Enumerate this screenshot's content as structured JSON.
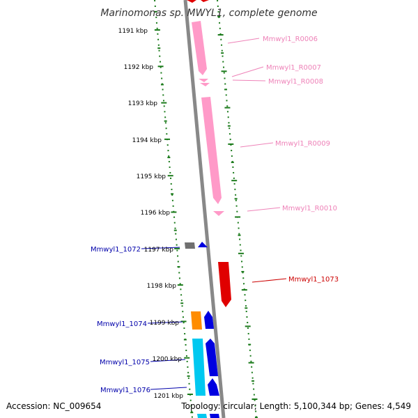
{
  "title": "Marinomonas sp. MWYL1, complete genome",
  "footer": {
    "accession": "Accession: NC_009654",
    "summary": "Topology: circular; Length: 5,100,344 bp; Genes: 4,549"
  },
  "colors": {
    "background": "#ffffff",
    "backbone": "#888888",
    "tick_dot": "#1a7a1a",
    "rrna_pink": "#ff9ac8",
    "gene_red": "#e00000",
    "gene_blue": "#0000e0",
    "gene_orange": "#ff8c00",
    "gene_cyan": "#00c8f0",
    "gene_gray": "#707070",
    "label_pink": "#ee82b8",
    "label_red": "#cc0000",
    "label_blue": "#0000aa"
  },
  "ticks": [
    {
      "label": "1191 kbp",
      "kbp": 1191
    },
    {
      "label": "1192 kbp",
      "kbp": 1192
    },
    {
      "label": "1193 kbp",
      "kbp": 1193
    },
    {
      "label": "1194 kbp",
      "kbp": 1194
    },
    {
      "label": "1195 kbp",
      "kbp": 1195
    },
    {
      "label": "1196 kbp",
      "kbp": 1196
    },
    {
      "label": "1197 kbp",
      "kbp": 1197
    },
    {
      "label": "1198 kbp",
      "kbp": 1198
    },
    {
      "label": "1199 kbp",
      "kbp": 1199
    },
    {
      "label": "1200 kbp",
      "kbp": 1200
    },
    {
      "label": "1201 kbp",
      "kbp": 1201
    }
  ],
  "right_labels": [
    {
      "text": "Mmwyl1_R0006",
      "color": "#ee82b8"
    },
    {
      "text": "Mmwyl1_R0007",
      "color": "#ee82b8"
    },
    {
      "text": "Mmwyl1_R0008",
      "color": "#ee82b8"
    },
    {
      "text": "Mmwyl1_R0009",
      "color": "#ee82b8"
    },
    {
      "text": "Mmwyl1_R0010",
      "color": "#ee82b8"
    },
    {
      "text": "Mmwyl1_1073",
      "color": "#cc0000"
    }
  ],
  "left_labels": [
    {
      "text": "Mmwyl1_1072",
      "color": "#0000aa"
    },
    {
      "text": "Mmwyl1_1074",
      "color": "#0000aa"
    },
    {
      "text": "Mmwyl1_1075",
      "color": "#0000aa"
    },
    {
      "text": "Mmwyl1_1076",
      "color": "#0000aa"
    }
  ]
}
